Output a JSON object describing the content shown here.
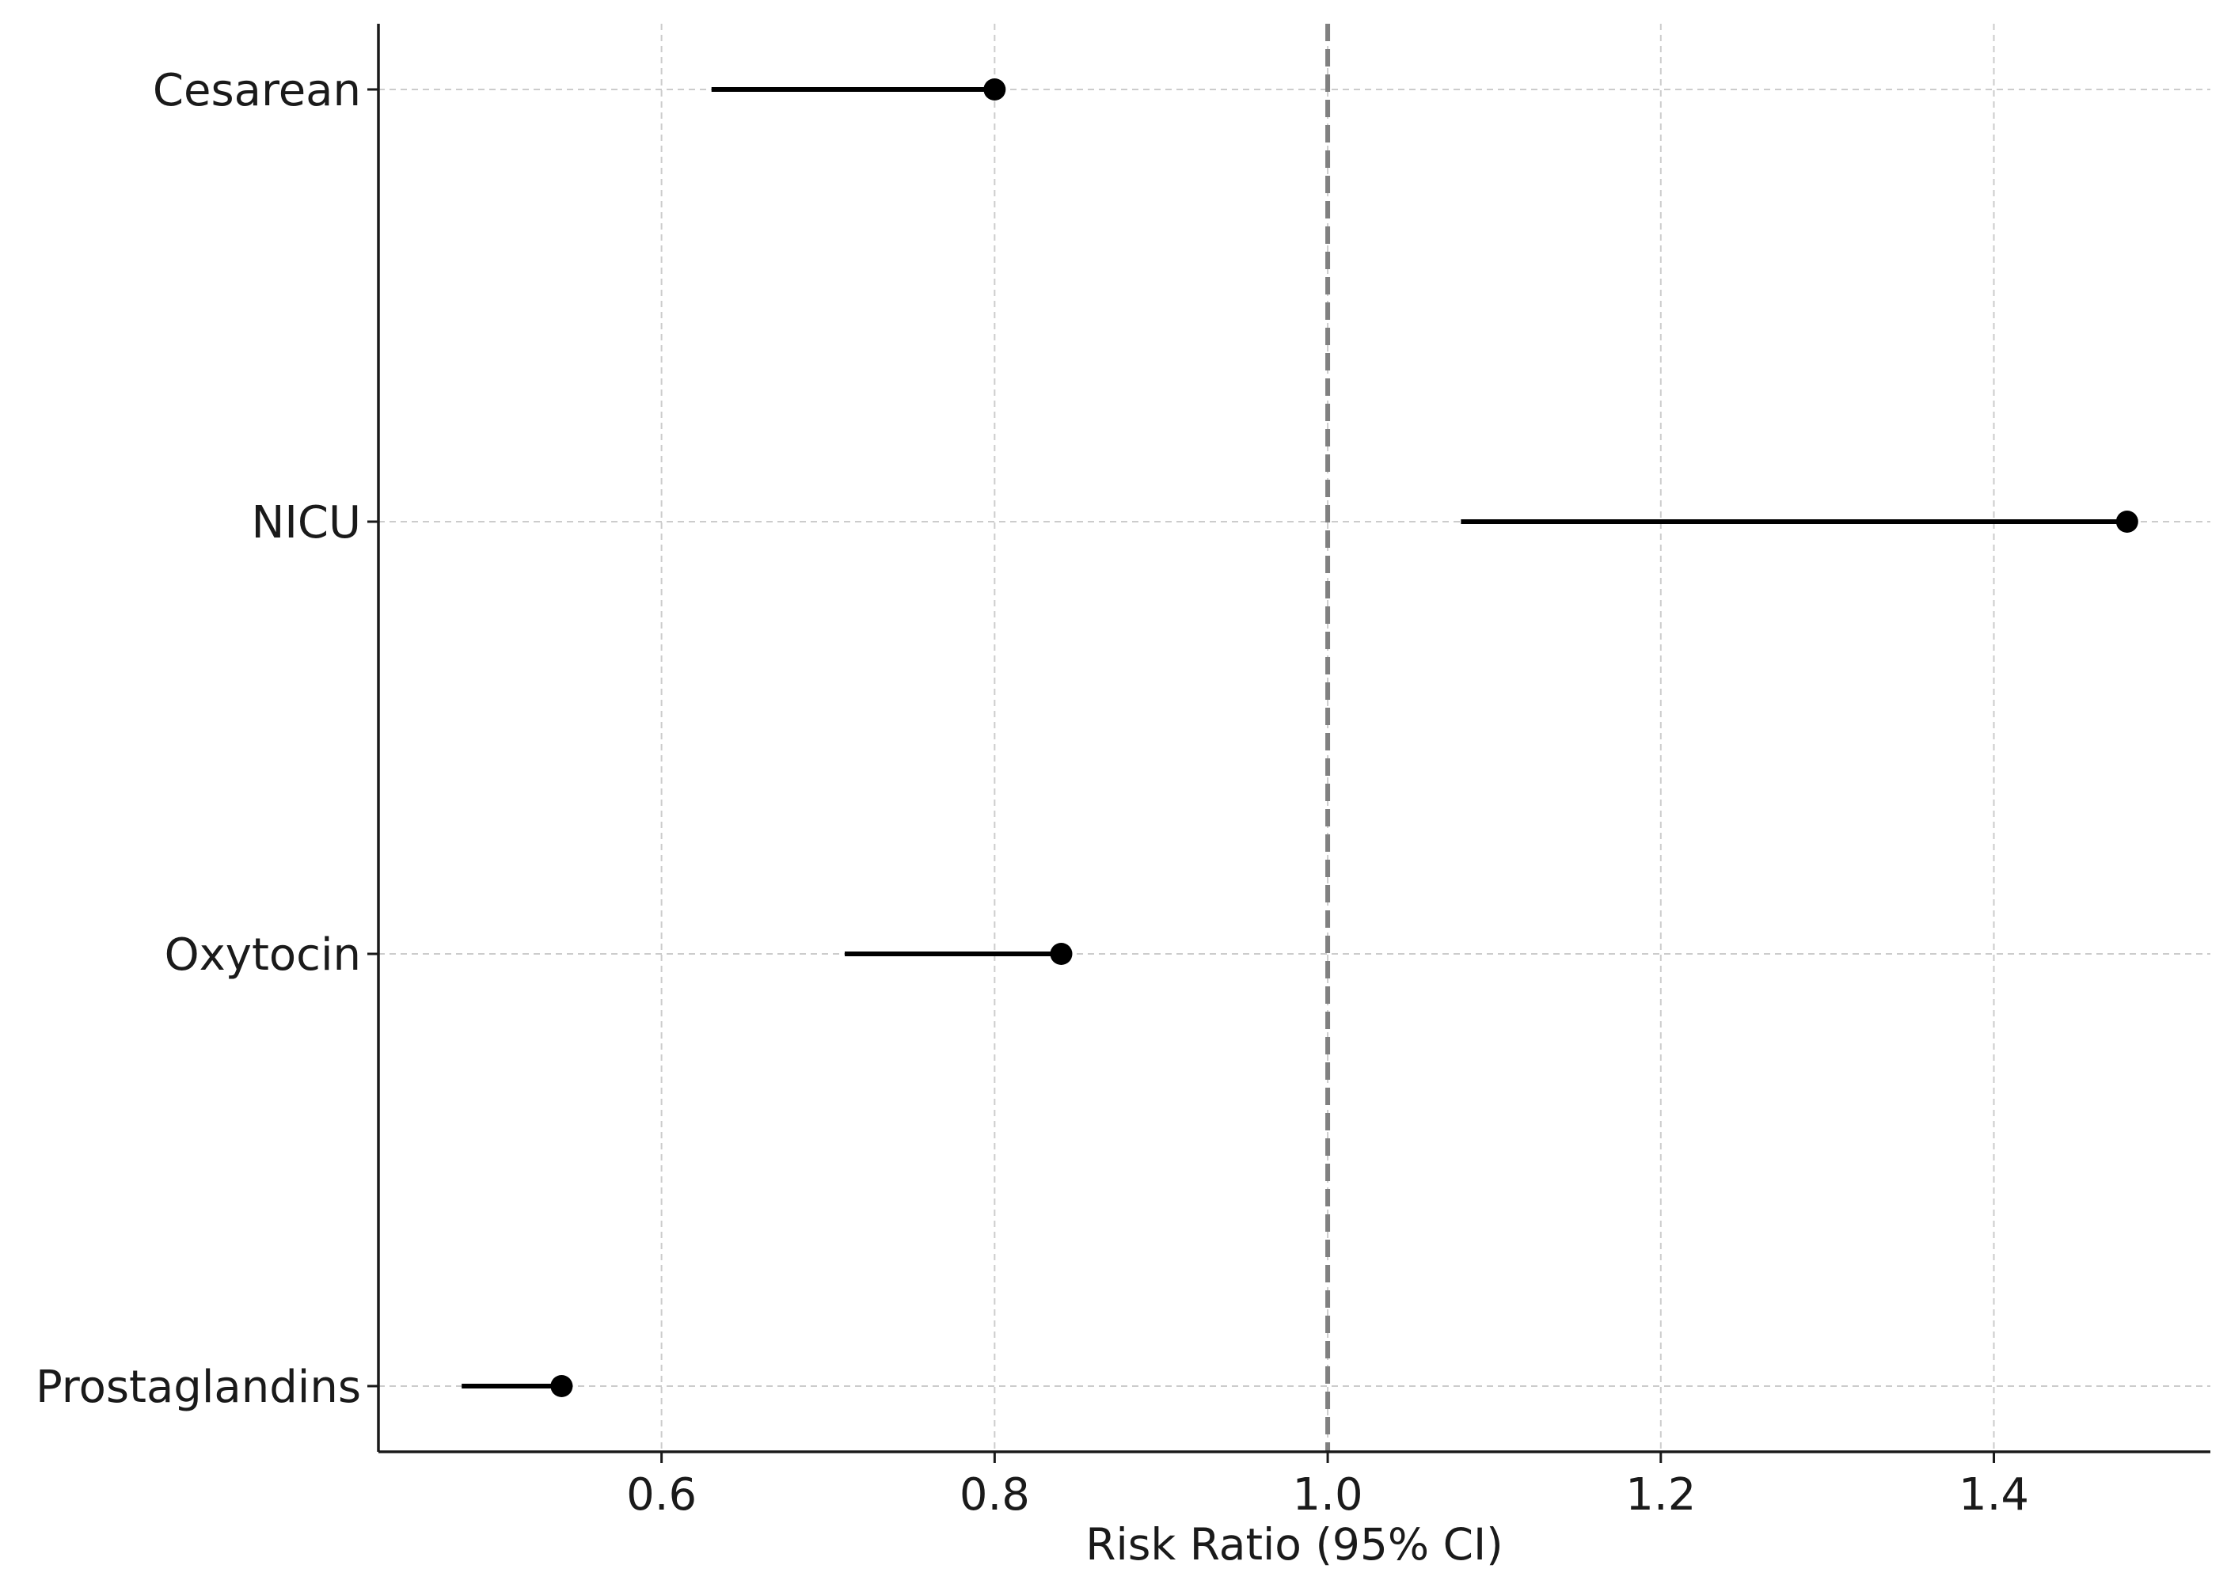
{
  "chart_data": {
    "type": "forest",
    "xlabel": "Risk Ratio (95% CI)",
    "ylabel": "",
    "xlim": [
      0.43,
      1.53
    ],
    "xticks": [
      0.6,
      0.8,
      1.0,
      1.2,
      1.4
    ],
    "xtick_labels": [
      "0.6",
      "0.8",
      "1.0",
      "1.2",
      "1.4"
    ],
    "reference_line": 1.0,
    "grid": true,
    "categories": [
      "Cesarean",
      "NICU",
      "Oxytocin",
      "Prostaglandins"
    ],
    "points": [
      {
        "label": "Cesarean",
        "estimate": 0.8,
        "ci_low": 0.63,
        "ci_high": 0.8
      },
      {
        "label": "NICU",
        "estimate": 1.48,
        "ci_low": 1.08,
        "ci_high": 1.48
      },
      {
        "label": "Oxytocin",
        "estimate": 0.84,
        "ci_low": 0.71,
        "ci_high": 0.84
      },
      {
        "label": "Prostaglandins",
        "estimate": 0.54,
        "ci_low": 0.48,
        "ci_high": 0.54
      }
    ],
    "colors": {
      "marker": "#000000",
      "ci_line": "#000000",
      "reference": "#808080",
      "grid": "#cccccc",
      "axis": "#1a1a1a"
    }
  }
}
